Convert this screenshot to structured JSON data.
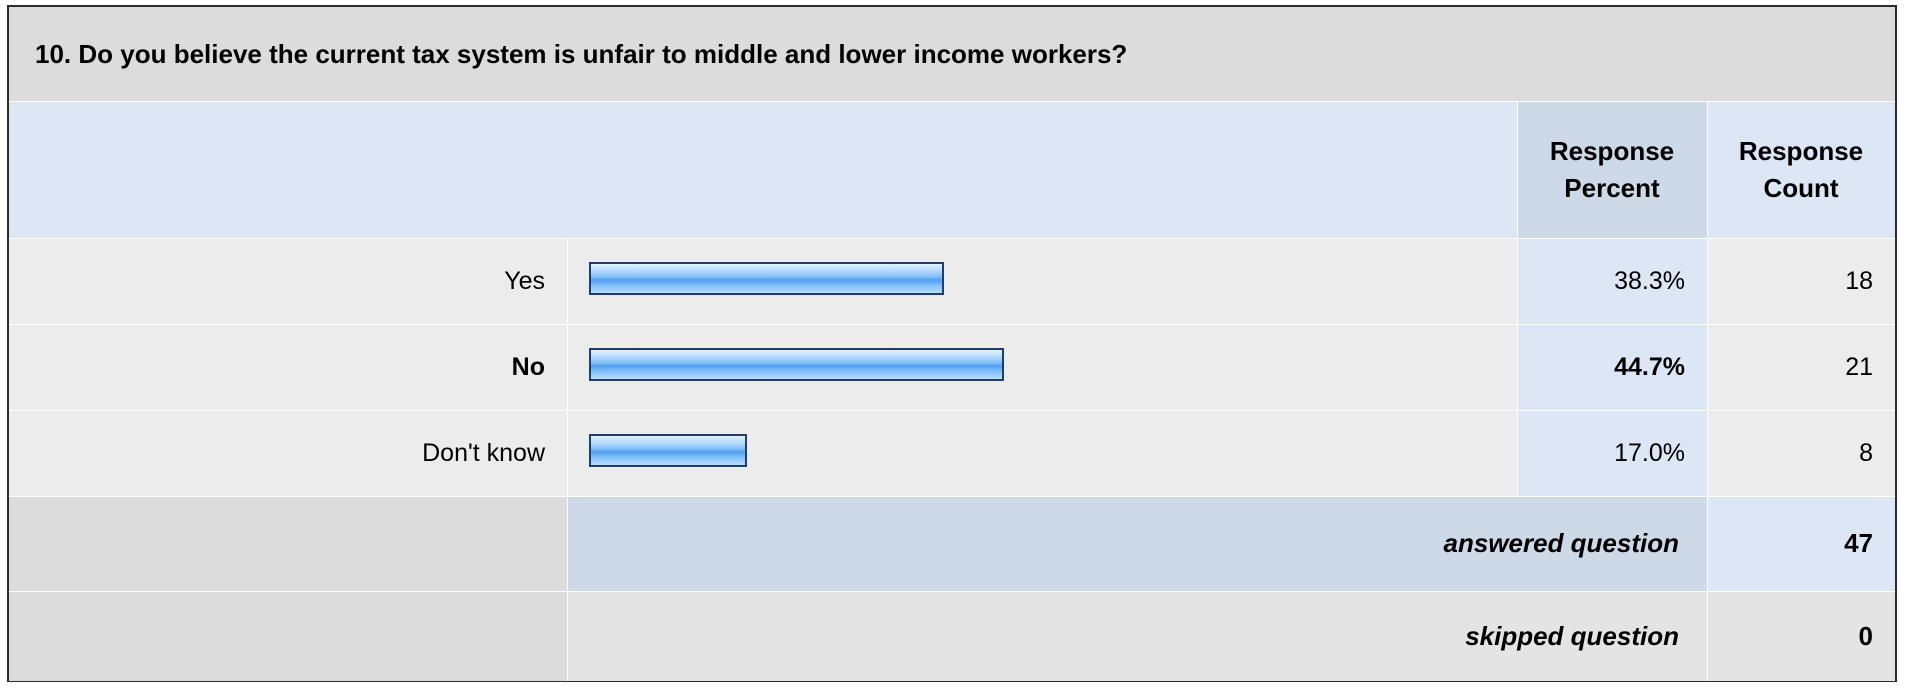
{
  "question": {
    "title": "10. Do you believe the current tax system is unfair to middle and lower income workers?"
  },
  "columns": {
    "percent": [
      "Response",
      "Percent"
    ],
    "count": [
      "Response",
      "Count"
    ]
  },
  "chart_data": {
    "type": "bar",
    "categories": [
      "Yes",
      "No",
      "Don't know"
    ],
    "values": [
      38.3,
      44.7,
      17.0
    ],
    "value_labels": [
      "38.3%",
      "44.7%",
      "17.0%"
    ],
    "counts": [
      "18",
      "21",
      "8"
    ],
    "highlighted": [
      false,
      true,
      false
    ],
    "unit": "%",
    "xlim": [
      0,
      100
    ],
    "bar_colors": {
      "fill": "#7fbdf8",
      "border": "#1e3f6e"
    }
  },
  "summary": {
    "answered_label": "answered question",
    "answered_value": "47",
    "skipped_label": "skipped question",
    "skipped_value": "0"
  }
}
